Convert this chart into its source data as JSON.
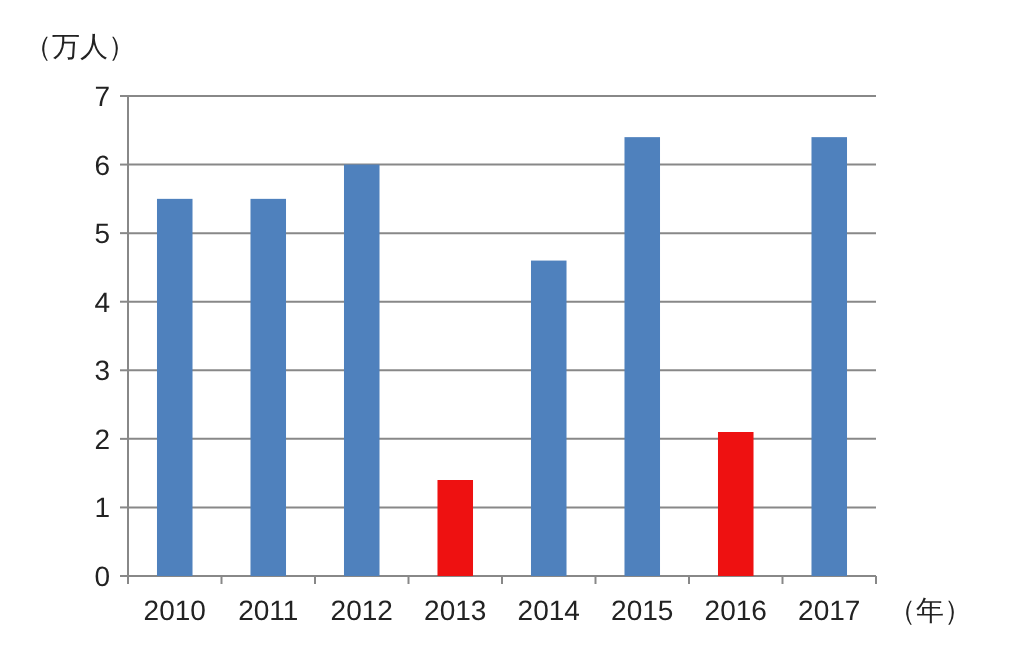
{
  "chart_data": {
    "type": "bar",
    "ylabel": "（万人）",
    "xlabel": "（年）",
    "categories": [
      "2010",
      "2011",
      "2012",
      "2013",
      "2014",
      "2015",
      "2016",
      "2017"
    ],
    "values": [
      5.5,
      5.5,
      6.0,
      1.4,
      4.6,
      6.4,
      2.1,
      6.4
    ],
    "colors": [
      "#4f81bd",
      "#4f81bd",
      "#4f81bd",
      "#ee1111",
      "#4f81bd",
      "#4f81bd",
      "#ee1111",
      "#4f81bd"
    ],
    "ylim": [
      0,
      7
    ],
    "yticks": [
      0,
      1,
      2,
      3,
      4,
      5,
      6,
      7
    ],
    "grid": "y"
  }
}
